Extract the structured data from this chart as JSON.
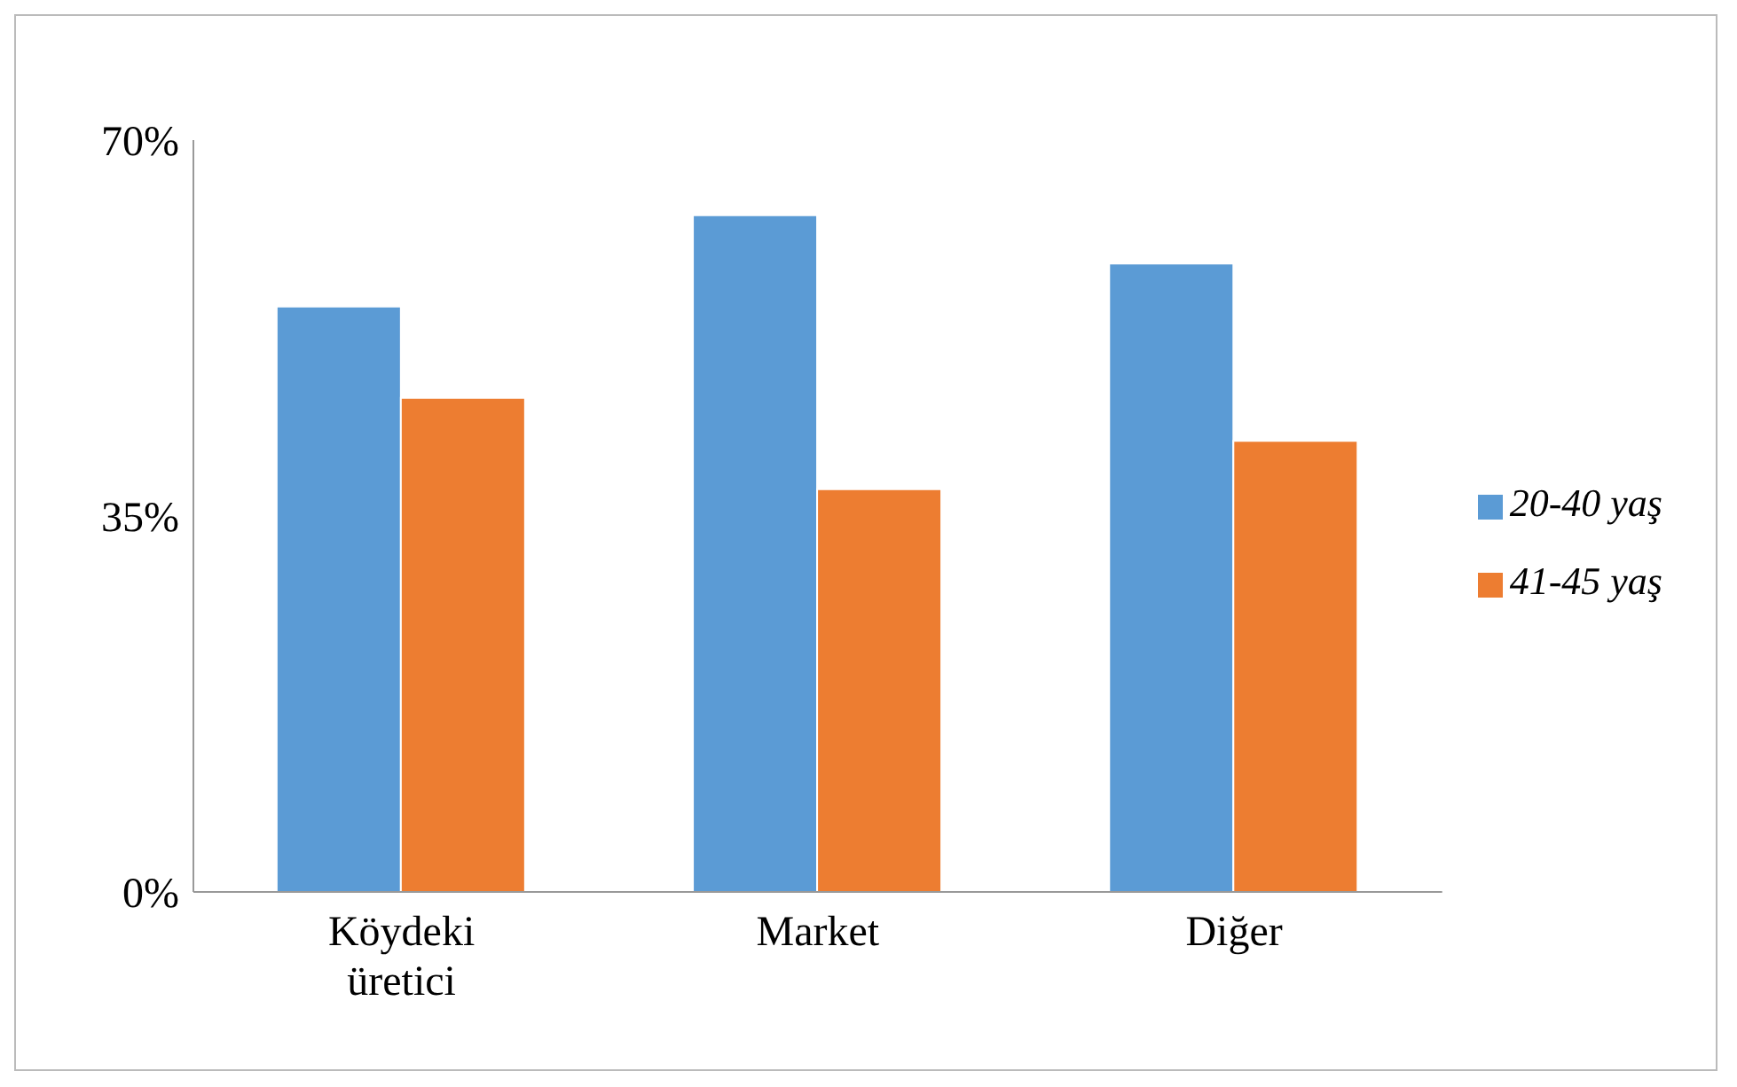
{
  "chart_data": {
    "type": "bar",
    "categories": [
      "Köydeki üretici",
      "Market",
      "Diğer"
    ],
    "series": [
      {
        "name": "20-40 yaş",
        "color": "#5b9bd5",
        "values": [
          54.5,
          63,
          58.5
        ]
      },
      {
        "name": "41-45 yaş",
        "color": "#ed7d31",
        "values": [
          46,
          37.5,
          42
        ]
      }
    ],
    "ylim": [
      0,
      70
    ],
    "yticks": [
      {
        "value": 0,
        "label": "0%"
      },
      {
        "value": 35,
        "label": "35%"
      },
      {
        "value": 70,
        "label": "70%"
      }
    ],
    "grid": false,
    "legend": "right"
  }
}
